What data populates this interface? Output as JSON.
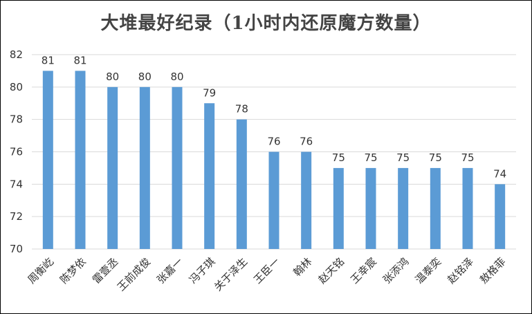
{
  "chart_data": {
    "type": "bar",
    "title": "大堆最好纪录（1小时内还原魔方数量）",
    "categories": [
      "周衡屹",
      "陈梦依",
      "雷壹丞",
      "王前成俊",
      "张嘉一",
      "冯子琪",
      "关于泽生",
      "王臣一",
      "翰林",
      "赵天铭",
      "王幸宸",
      "张添鸿",
      "温泰奕",
      "赵铭泽",
      "敖格菲"
    ],
    "values": [
      81,
      81,
      80,
      80,
      80,
      79,
      78,
      76,
      76,
      75,
      75,
      75,
      75,
      75,
      74
    ],
    "ylim": [
      70,
      82
    ],
    "yticks": [
      70,
      72,
      74,
      76,
      78,
      80,
      82
    ],
    "grid": true,
    "bar_color": "#5b9bd5",
    "grid_color": "#d9d9d9"
  }
}
